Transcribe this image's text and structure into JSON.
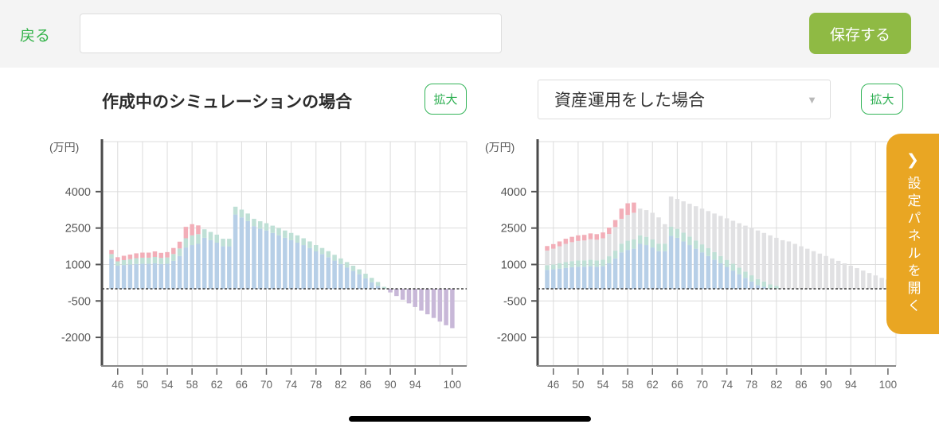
{
  "header": {
    "back_label": "戻る",
    "input_value": "",
    "save_label": "保存する"
  },
  "left_panel": {
    "title": "作成中のシミュレーションの場合",
    "expand_label": "拡大"
  },
  "right_panel": {
    "selector_value": "資産運用をした場合",
    "expand_label": "拡大"
  },
  "side_panel": {
    "chevron": "❯",
    "label": "設定パネルを開く"
  },
  "colors": {
    "accent_green": "#34b34a",
    "save_green": "#8fba44",
    "panel_orange": "#e9a623",
    "bar_blue": "#b7cfe7",
    "bar_teal": "#bfe0d6",
    "bar_pink": "#f2aeb8",
    "bar_purple": "#c8b8d8",
    "bar_gray": "#e1e1e3"
  },
  "chart_data": [
    {
      "type": "bar",
      "stacked": true,
      "title": "作成中のシミュレーションの場合",
      "ylabel": "(万円)",
      "yticks": [
        4000,
        2500,
        1000,
        -500,
        -2000
      ],
      "ylim": [
        -3200,
        6100
      ],
      "xticks": [
        46,
        50,
        54,
        58,
        62,
        66,
        70,
        74,
        78,
        82,
        86,
        90,
        94,
        100
      ],
      "age_start": 45,
      "age_end": 100,
      "zero_line": "dashed",
      "grid": true,
      "legend": false,
      "series": [
        {
          "name": "blue-segment",
          "color": "#b7cfe7",
          "values": [
            1250,
            950,
            980,
            1000,
            1020,
            1030,
            1030,
            1050,
            1020,
            1030,
            1150,
            1350,
            1700,
            1800,
            1850,
            2100,
            2000,
            1900,
            1750,
            1750,
            3060,
            2940,
            2790,
            2580,
            2480,
            2400,
            2300,
            2200,
            2100,
            2000,
            1900,
            1800,
            1680,
            1540,
            1430,
            1300,
            1160,
            1020,
            880,
            740,
            600,
            430,
            270,
            120,
            0,
            0,
            0,
            0,
            0,
            0,
            0,
            0,
            0,
            0,
            0,
            0
          ]
        },
        {
          "name": "teal-segment",
          "color": "#bfe0d6",
          "values": [
            180,
            180,
            200,
            220,
            240,
            250,
            250,
            260,
            250,
            260,
            280,
            310,
            380,
            400,
            400,
            350,
            340,
            330,
            310,
            310,
            320,
            320,
            310,
            300,
            300,
            300,
            300,
            300,
            300,
            300,
            300,
            280,
            270,
            260,
            250,
            250,
            240,
            230,
            220,
            210,
            200,
            190,
            180,
            160,
            80,
            0,
            0,
            0,
            0,
            0,
            0,
            0,
            0,
            0,
            0,
            0
          ]
        },
        {
          "name": "pink-segment",
          "color": "#f2aeb8",
          "values": [
            170,
            170,
            180,
            190,
            200,
            210,
            210,
            230,
            210,
            220,
            250,
            280,
            470,
            460,
            360,
            0,
            0,
            0,
            0,
            0,
            0,
            0,
            0,
            0,
            0,
            0,
            0,
            0,
            0,
            0,
            0,
            0,
            0,
            0,
            0,
            0,
            0,
            0,
            0,
            0,
            0,
            0,
            0,
            0,
            0,
            0,
            0,
            0,
            0,
            0,
            0,
            0,
            0,
            0,
            0,
            0
          ]
        },
        {
          "name": "purple-deficit-segment",
          "color": "#c8b8d8",
          "values": [
            0,
            0,
            0,
            0,
            0,
            0,
            0,
            0,
            0,
            0,
            0,
            0,
            0,
            0,
            0,
            0,
            0,
            0,
            0,
            0,
            0,
            0,
            0,
            0,
            0,
            0,
            0,
            0,
            0,
            0,
            0,
            0,
            0,
            0,
            0,
            0,
            0,
            0,
            0,
            0,
            0,
            0,
            0,
            0,
            0,
            -150,
            -300,
            -450,
            -600,
            -750,
            -900,
            -1050,
            -1200,
            -1350,
            -1500,
            -1620
          ]
        }
      ]
    },
    {
      "type": "bar",
      "stacked": true,
      "title": "資産運用をした場合",
      "ylabel": "(万円)",
      "yticks": [
        4000,
        2500,
        1000,
        -500,
        -2000
      ],
      "ylim": [
        -3200,
        6100
      ],
      "xticks": [
        46,
        50,
        54,
        58,
        62,
        66,
        70,
        74,
        78,
        82,
        86,
        90,
        94,
        100
      ],
      "age_start": 45,
      "age_end": 100,
      "zero_line": "dashed",
      "grid": true,
      "legend": false,
      "series": [
        {
          "name": "blue-segment",
          "color": "#b7cfe7",
          "values": [
            780,
            800,
            830,
            860,
            890,
            910,
            910,
            930,
            910,
            930,
            1050,
            1250,
            1500,
            1600,
            1650,
            1850,
            1800,
            1700,
            1550,
            1550,
            2180,
            2100,
            1950,
            1800,
            1650,
            1500,
            1350,
            1200,
            1050,
            900,
            750,
            600,
            450,
            300,
            150,
            80,
            0,
            0,
            0,
            0,
            0,
            0,
            0,
            0,
            0,
            0,
            0,
            0,
            0,
            0,
            0,
            0,
            0,
            0,
            0,
            0
          ]
        },
        {
          "name": "teal-segment",
          "color": "#bfe0d6",
          "values": [
            195,
            200,
            220,
            240,
            250,
            260,
            260,
            270,
            260,
            270,
            290,
            320,
            360,
            380,
            380,
            350,
            340,
            330,
            310,
            310,
            380,
            370,
            360,
            350,
            340,
            330,
            320,
            310,
            300,
            290,
            280,
            270,
            260,
            255,
            250,
            220,
            180,
            120,
            0,
            0,
            0,
            0,
            0,
            0,
            0,
            0,
            0,
            0,
            0,
            0,
            0,
            0,
            0,
            0,
            0,
            0
          ]
        },
        {
          "name": "gray-investment-segment",
          "color": "#e1e1e3",
          "values": [
            600,
            650,
            700,
            750,
            780,
            800,
            820,
            840,
            850,
            880,
            920,
            970,
            1020,
            1060,
            1100,
            1100,
            1100,
            1100,
            1080,
            800,
            1240,
            1230,
            1290,
            1350,
            1410,
            1470,
            1530,
            1590,
            1650,
            1710,
            1770,
            1830,
            1890,
            1945,
            2000,
            2000,
            2020,
            1980,
            2000,
            1950,
            1850,
            1750,
            1650,
            1550,
            1450,
            1350,
            1250,
            1150,
            1050,
            950,
            850,
            750,
            650,
            550,
            450,
            380
          ]
        },
        {
          "name": "pink-segment",
          "color": "#f2aeb8",
          "values": [
            185,
            190,
            200,
            210,
            220,
            230,
            230,
            240,
            230,
            240,
            260,
            290,
            420,
            480,
            420,
            0,
            0,
            0,
            0,
            0,
            0,
            0,
            0,
            0,
            0,
            0,
            0,
            0,
            0,
            0,
            0,
            0,
            0,
            0,
            0,
            0,
            0,
            0,
            0,
            0,
            0,
            0,
            0,
            0,
            0,
            0,
            0,
            0,
            0,
            0,
            0,
            0,
            0,
            0,
            0,
            0
          ]
        }
      ]
    }
  ]
}
